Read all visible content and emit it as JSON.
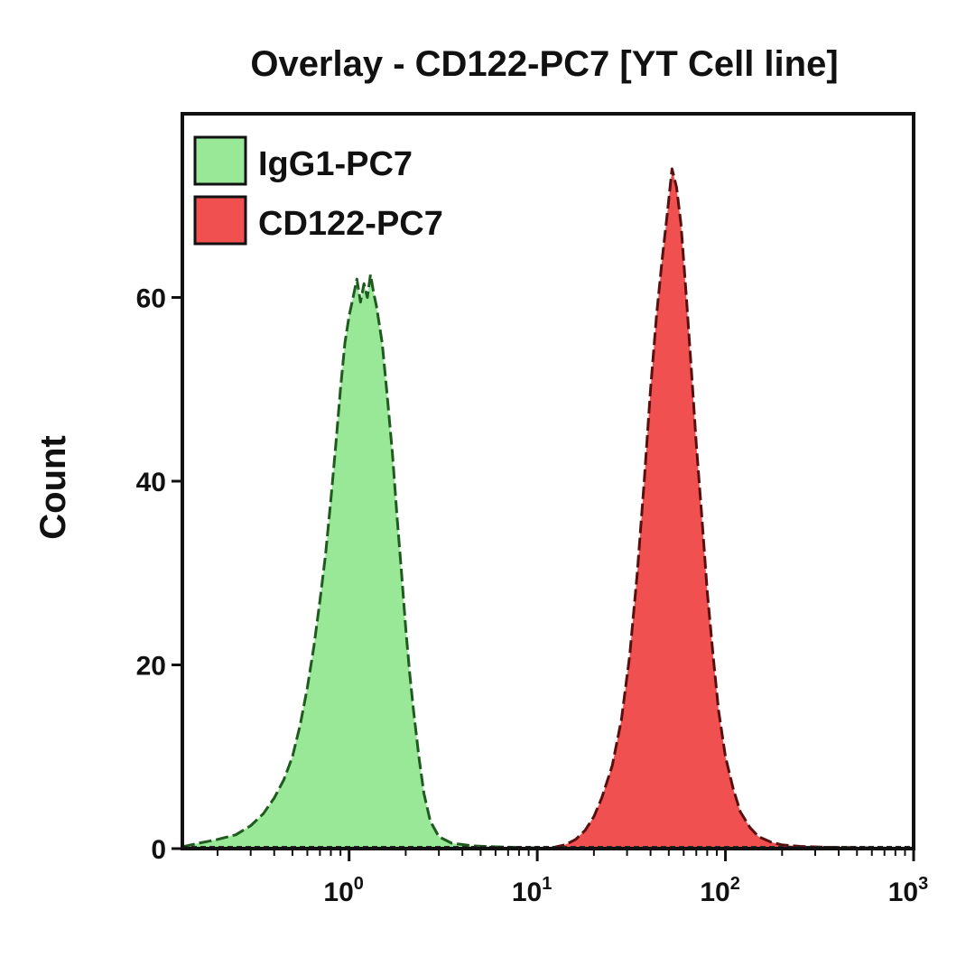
{
  "chart_data": {
    "type": "area",
    "title": "Overlay - CD122-PC7 [YT Cell line]",
    "xlabel": "",
    "ylabel": "Count",
    "x_scale": "log",
    "xlim": [
      0.13,
      1000
    ],
    "ylim": [
      0,
      80
    ],
    "x_ticks": [
      {
        "value": 1,
        "base": "10",
        "exp": "0"
      },
      {
        "value": 10,
        "base": "10",
        "exp": "1"
      },
      {
        "value": 100,
        "base": "10",
        "exp": "2"
      },
      {
        "value": 1000,
        "base": "10",
        "exp": "3"
      }
    ],
    "y_ticks": [
      0,
      20,
      40,
      60
    ],
    "legend_position": "top-left",
    "grid": false,
    "series": [
      {
        "name": "IgG1-PC7",
        "color": "#98e898",
        "edge_color": "#1f5a1f",
        "points": [
          [
            0.13,
            0.2
          ],
          [
            0.16,
            0.6
          ],
          [
            0.2,
            1.0
          ],
          [
            0.25,
            1.5
          ],
          [
            0.3,
            2.5
          ],
          [
            0.35,
            3.8
          ],
          [
            0.4,
            5.5
          ],
          [
            0.45,
            7.5
          ],
          [
            0.5,
            10.0
          ],
          [
            0.55,
            13.5
          ],
          [
            0.6,
            17.5
          ],
          [
            0.65,
            22.0
          ],
          [
            0.7,
            27.0
          ],
          [
            0.75,
            32.0
          ],
          [
            0.8,
            38.0
          ],
          [
            0.85,
            44.0
          ],
          [
            0.9,
            50.0
          ],
          [
            0.95,
            55.0
          ],
          [
            1.0,
            58.0
          ],
          [
            1.05,
            60.0
          ],
          [
            1.1,
            62.0
          ],
          [
            1.15,
            59.5
          ],
          [
            1.2,
            61.5
          ],
          [
            1.25,
            60.0
          ],
          [
            1.3,
            62.5
          ],
          [
            1.35,
            60.5
          ],
          [
            1.4,
            59.0
          ],
          [
            1.5,
            55.0
          ],
          [
            1.6,
            49.0
          ],
          [
            1.7,
            43.0
          ],
          [
            1.8,
            36.0
          ],
          [
            1.9,
            30.0
          ],
          [
            2.0,
            24.0
          ],
          [
            2.1,
            19.0
          ],
          [
            2.2,
            15.0
          ],
          [
            2.35,
            10.0
          ],
          [
            2.5,
            6.0
          ],
          [
            2.7,
            3.0
          ],
          [
            3.0,
            1.3
          ],
          [
            3.5,
            0.6
          ],
          [
            4.5,
            0.3
          ],
          [
            6.0,
            0.2
          ],
          [
            9.0,
            0.1
          ],
          [
            12.0,
            0.05
          ]
        ]
      },
      {
        "name": "CD122-PC7",
        "color": "#f05050",
        "edge_color": "#5a0f0f",
        "points": [
          [
            12.0,
            0.1
          ],
          [
            14.0,
            0.4
          ],
          [
            16.0,
            1.0
          ],
          [
            18.0,
            2.0
          ],
          [
            20.0,
            3.5
          ],
          [
            22.0,
            5.5
          ],
          [
            25.0,
            9.0
          ],
          [
            28.0,
            14.0
          ],
          [
            31.0,
            21.0
          ],
          [
            34.0,
            30.0
          ],
          [
            37.0,
            40.0
          ],
          [
            40.0,
            50.0
          ],
          [
            43.0,
            58.0
          ],
          [
            46.0,
            64.0
          ],
          [
            49.0,
            69.0
          ],
          [
            52.0,
            74.0
          ],
          [
            55.0,
            72.0
          ],
          [
            58.0,
            68.0
          ],
          [
            62.0,
            60.0
          ],
          [
            66.0,
            52.0
          ],
          [
            70.0,
            44.0
          ],
          [
            75.0,
            36.0
          ],
          [
            80.0,
            28.0
          ],
          [
            86.0,
            21.0
          ],
          [
            92.0,
            15.0
          ],
          [
            100.0,
            10.0
          ],
          [
            110.0,
            6.5
          ],
          [
            120.0,
            4.0
          ],
          [
            135.0,
            2.3
          ],
          [
            150.0,
            1.3
          ],
          [
            175.0,
            0.7
          ],
          [
            200.0,
            0.4
          ],
          [
            250.0,
            0.25
          ],
          [
            350.0,
            0.15
          ],
          [
            500.0,
            0.1
          ],
          [
            800.0,
            0.05
          ]
        ]
      }
    ]
  }
}
